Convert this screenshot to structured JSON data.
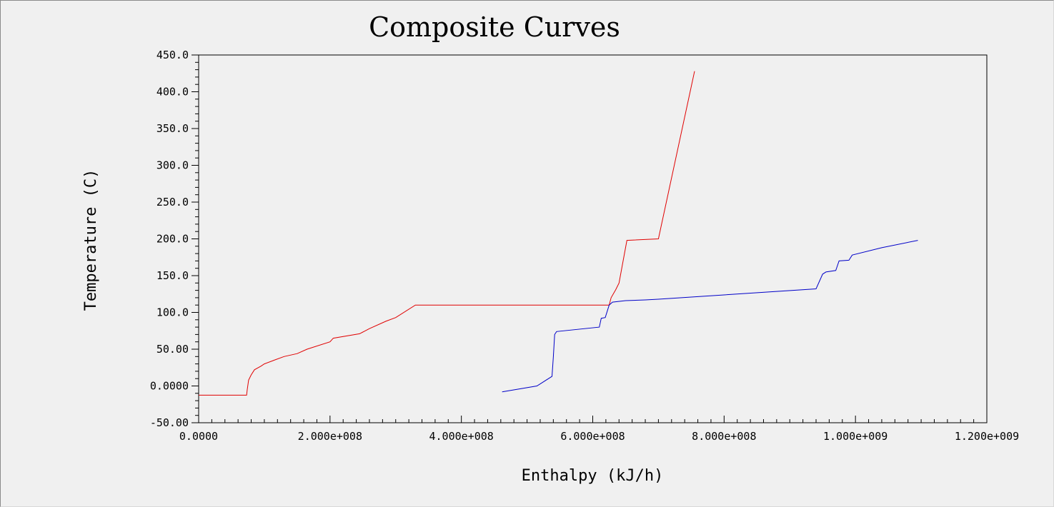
{
  "chart_data": {
    "type": "line",
    "title": "Composite Curves",
    "xlabel": "Enthalpy (kJ/h)",
    "ylabel": "Temperature (C)",
    "xlim": [
      0,
      1200000000
    ],
    "ylim": [
      -50,
      450
    ],
    "x_ticks": [
      {
        "value": 0,
        "label": "0.0000"
      },
      {
        "value": 200000000,
        "label": "2.000e+008"
      },
      {
        "value": 400000000,
        "label": "4.000e+008"
      },
      {
        "value": 600000000,
        "label": "6.000e+008"
      },
      {
        "value": 800000000,
        "label": "8.000e+008"
      },
      {
        "value": 1000000000,
        "label": "1.000e+009"
      },
      {
        "value": 1200000000,
        "label": "1.200e+009"
      }
    ],
    "y_ticks": [
      {
        "value": 450,
        "label": "450.0"
      },
      {
        "value": 400,
        "label": "400.0"
      },
      {
        "value": 350,
        "label": "350.0"
      },
      {
        "value": 300,
        "label": "300.0"
      },
      {
        "value": 250,
        "label": "250.0"
      },
      {
        "value": 200,
        "label": "200.0"
      },
      {
        "value": 150,
        "label": "150.0"
      },
      {
        "value": 100,
        "label": "100.0"
      },
      {
        "value": 50,
        "label": "50.00"
      },
      {
        "value": 0,
        "label": "0.0000"
      },
      {
        "value": -50,
        "label": "-50.00"
      }
    ],
    "grid": false,
    "series": [
      {
        "color": "#e00000",
        "points": [
          [
            0,
            -12.5
          ],
          [
            73000000,
            -12.5
          ],
          [
            74000000,
            -5
          ],
          [
            76000000,
            8
          ],
          [
            80000000,
            15
          ],
          [
            85000000,
            22
          ],
          [
            95000000,
            27
          ],
          [
            100000000,
            30
          ],
          [
            115000000,
            35
          ],
          [
            130000000,
            40
          ],
          [
            150000000,
            44
          ],
          [
            165000000,
            50
          ],
          [
            200000000,
            60
          ],
          [
            205000000,
            65
          ],
          [
            245000000,
            71
          ],
          [
            260000000,
            78
          ],
          [
            285000000,
            88
          ],
          [
            300000000,
            93
          ],
          [
            330000000,
            110
          ],
          [
            625000000,
            110
          ],
          [
            628000000,
            120
          ],
          [
            635000000,
            131
          ],
          [
            640000000,
            140
          ],
          [
            652000000,
            198
          ],
          [
            700000000,
            200
          ],
          [
            755000000,
            428
          ]
        ]
      },
      {
        "color": "#0000c8",
        "points": [
          [
            462000000,
            -8
          ],
          [
            515000000,
            0
          ],
          [
            538000000,
            13
          ],
          [
            540000000,
            40
          ],
          [
            542000000,
            70
          ],
          [
            545000000,
            74
          ],
          [
            610000000,
            80
          ],
          [
            613000000,
            92
          ],
          [
            619000000,
            93
          ],
          [
            625000000,
            110
          ],
          [
            630000000,
            114
          ],
          [
            650000000,
            116
          ],
          [
            680000000,
            117
          ],
          [
            700000000,
            118
          ],
          [
            940000000,
            132
          ],
          [
            950000000,
            152
          ],
          [
            955000000,
            155
          ],
          [
            970000000,
            157
          ],
          [
            975000000,
            170
          ],
          [
            990000000,
            171
          ],
          [
            995000000,
            178
          ],
          [
            1040000000,
            188
          ],
          [
            1095000000,
            198
          ]
        ]
      }
    ]
  }
}
